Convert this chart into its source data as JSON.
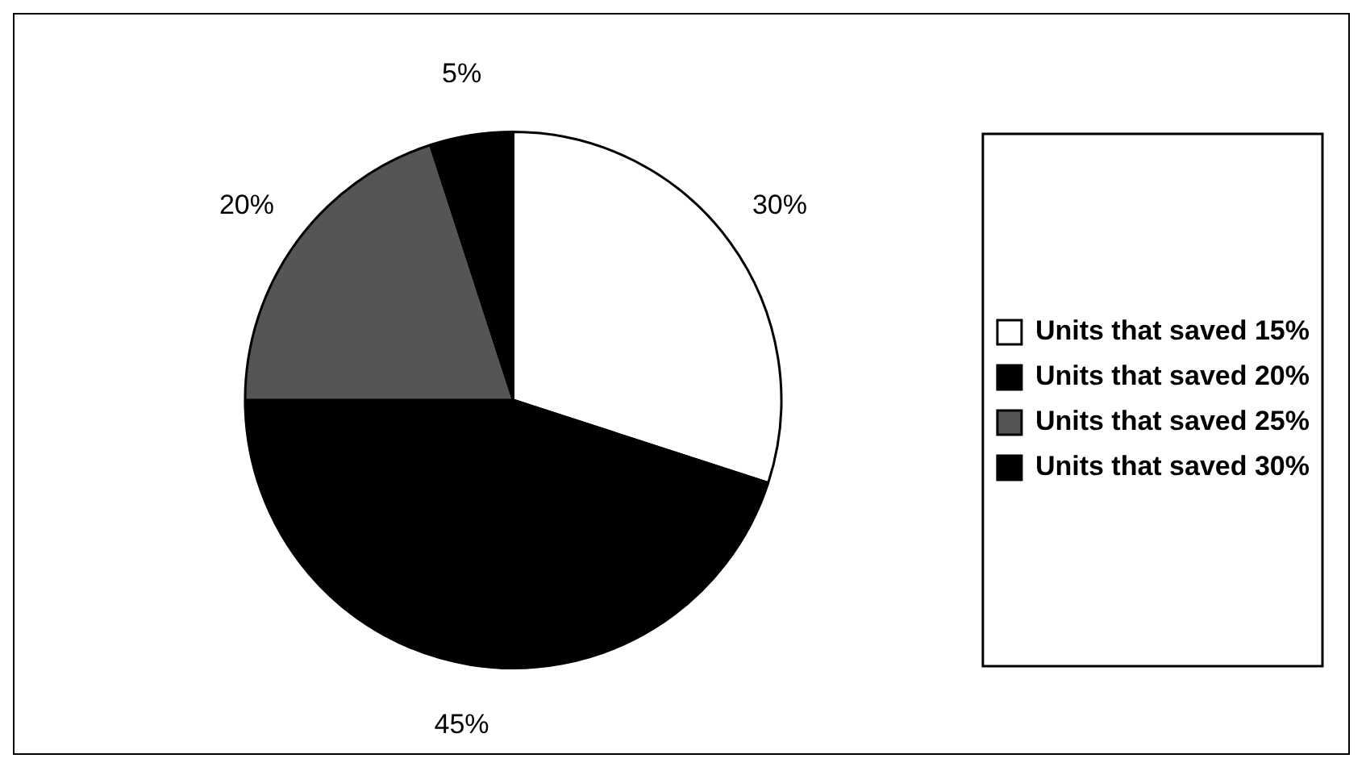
{
  "chart_data": {
    "type": "pie",
    "categories": [
      "Units that saved 15%",
      "Units that saved 20%",
      "Units that saved 25%",
      "Units that saved 30%"
    ],
    "values": [
      30,
      45,
      20,
      5
    ],
    "colors": [
      "#ffffff",
      "#000000",
      "#555555",
      "#000000"
    ],
    "value_labels": [
      "30%",
      "45%",
      "20%",
      "5%"
    ],
    "legend": "right"
  }
}
